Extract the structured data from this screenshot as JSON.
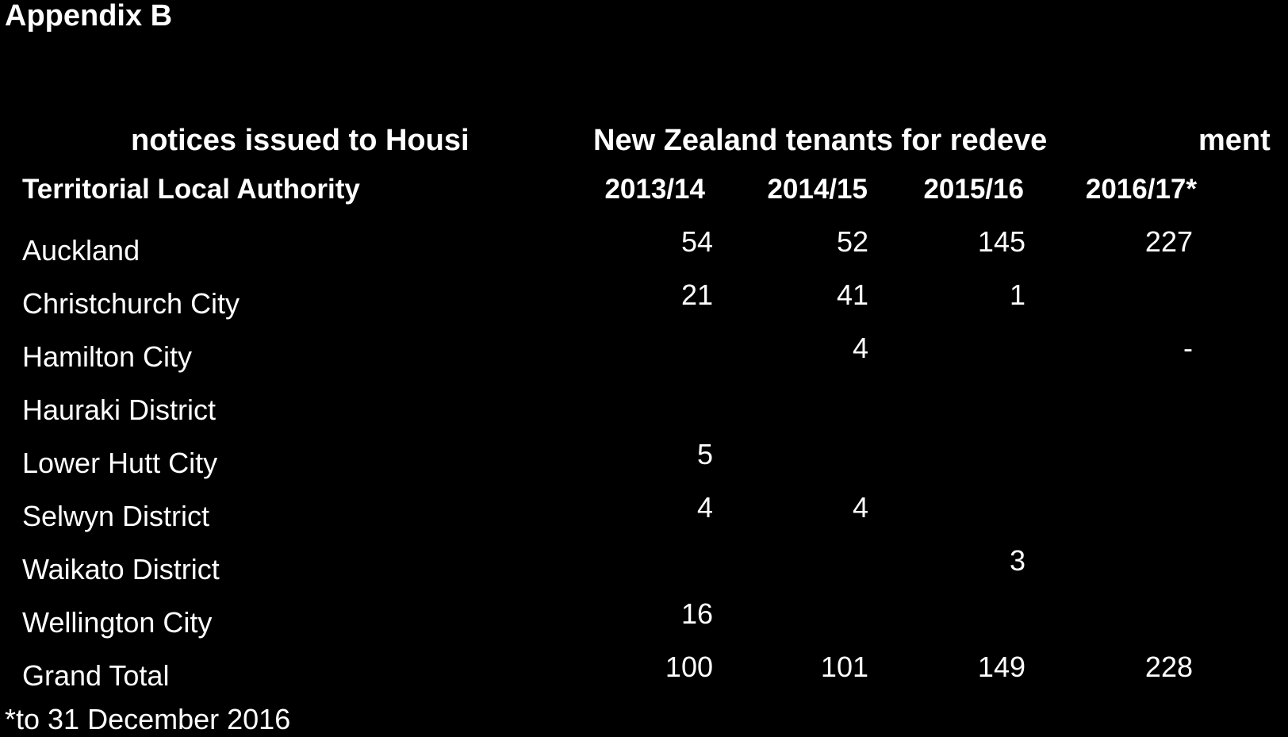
{
  "appendix_heading": "Appendix B",
  "table_title_parts": [
    "notices issued to Housi",
    "New Zealand tenants for redeve",
    "ment"
  ],
  "columns": {
    "label": "Territorial Local Authority",
    "years": [
      "2013/14",
      "2014/15",
      "2015/16",
      "2016/17*"
    ]
  },
  "rows": [
    {
      "label": "Auckland",
      "values": [
        "54",
        "52",
        "145",
        "227"
      ]
    },
    {
      "label": "Christchurch City",
      "values": [
        "21",
        "41",
        "1",
        ""
      ]
    },
    {
      "label": "Hamilton City",
      "values": [
        "",
        "4",
        "",
        "-"
      ]
    },
    {
      "label": "Hauraki District",
      "values": [
        "",
        "",
        "",
        ""
      ]
    },
    {
      "label": "Lower Hutt City",
      "values": [
        "5",
        "",
        "",
        ""
      ]
    },
    {
      "label": "Selwyn District",
      "values": [
        "4",
        "4",
        "",
        ""
      ]
    },
    {
      "label": "Waikato District",
      "values": [
        "",
        "",
        "3",
        ""
      ]
    },
    {
      "label": "Wellington City",
      "values": [
        "16",
        "",
        "",
        ""
      ]
    },
    {
      "label": "Grand Total",
      "values": [
        "100",
        "101",
        "149",
        "228"
      ]
    }
  ],
  "footnote": "*to 31 December 2016"
}
